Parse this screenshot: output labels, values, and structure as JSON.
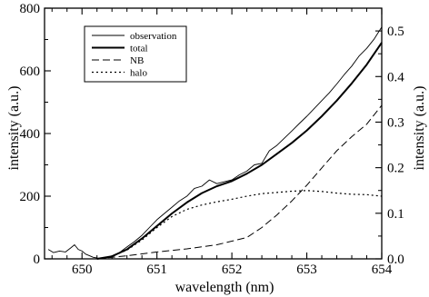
{
  "chart_data": {
    "type": "line",
    "xlabel": "wavelength (nm)",
    "ylabel": "intensity (a.u.)",
    "ylabel_right": "intensity (a.u.)",
    "xlim": [
      649.5,
      654.0
    ],
    "ylim": [
      0,
      800
    ],
    "ylim_right": [
      0,
      0.55
    ],
    "x_ticks": [
      650,
      651,
      652,
      653,
      654
    ],
    "x_tick_labels": [
      "650",
      "651",
      "652",
      "653",
      "654"
    ],
    "y_ticks": [
      0,
      200,
      400,
      600,
      800
    ],
    "y_tick_labels": [
      "0",
      "200",
      "400",
      "600",
      "800"
    ],
    "y_right_ticks": [
      0.0,
      0.1,
      0.2,
      0.3,
      0.4,
      0.5
    ],
    "y_right_tick_labels": [
      "0.0",
      "0.1",
      "0.2",
      "0.3",
      "0.4",
      "0.5"
    ],
    "legend": {
      "position": "top-left"
    },
    "series": [
      {
        "name": "observation",
        "style": "thin-solid",
        "x": [
          649.55,
          649.62,
          649.7,
          649.78,
          649.85,
          649.9,
          649.95,
          650.0,
          650.05,
          650.1,
          650.15,
          650.2,
          650.25,
          650.3,
          650.4,
          650.5,
          650.6,
          650.7,
          650.8,
          650.9,
          651.0,
          651.1,
          651.2,
          651.3,
          651.4,
          651.5,
          651.6,
          651.7,
          651.8,
          651.9,
          652.0,
          652.1,
          652.2,
          652.3,
          652.4,
          652.5,
          652.6,
          652.7,
          652.8,
          652.9,
          653.0,
          653.1,
          653.2,
          653.3,
          653.4,
          653.5,
          653.6,
          653.7,
          653.8,
          653.9,
          654.0
        ],
        "y": [
          30,
          20,
          25,
          22,
          35,
          45,
          30,
          25,
          15,
          10,
          5,
          3,
          0,
          3,
          8,
          20,
          38,
          55,
          75,
          100,
          125,
          145,
          165,
          185,
          200,
          225,
          232,
          252,
          240,
          246,
          252,
          268,
          280,
          300,
          305,
          345,
          362,
          385,
          408,
          432,
          455,
          480,
          505,
          530,
          558,
          588,
          615,
          648,
          672,
          702,
          740
        ]
      },
      {
        "name": "total",
        "style": "thick-solid",
        "x": [
          650.2,
          650.4,
          650.6,
          650.8,
          651.0,
          651.2,
          651.4,
          651.6,
          651.8,
          652.0,
          652.2,
          652.4,
          652.6,
          652.8,
          653.0,
          653.2,
          653.4,
          653.6,
          653.8,
          654.0
        ],
        "y": [
          0,
          8,
          30,
          65,
          105,
          145,
          180,
          210,
          232,
          248,
          272,
          300,
          335,
          370,
          410,
          455,
          505,
          560,
          620,
          690
        ]
      },
      {
        "name": "NB",
        "style": "dashed",
        "x": [
          650.2,
          650.6,
          651.0,
          651.4,
          651.8,
          652.2,
          652.4,
          652.6,
          652.8,
          653.0,
          653.2,
          653.4,
          653.6,
          653.8,
          654.0
        ],
        "y": [
          0,
          10,
          22,
          32,
          45,
          68,
          100,
          140,
          185,
          235,
          290,
          345,
          390,
          430,
          490
        ]
      },
      {
        "name": "halo",
        "style": "dotted",
        "x": [
          650.2,
          650.4,
          650.6,
          650.8,
          651.0,
          651.2,
          651.4,
          651.6,
          651.8,
          652.0,
          652.2,
          652.4,
          652.6,
          652.8,
          653.0,
          653.2,
          653.4,
          653.6,
          653.8,
          654.0
        ],
        "y": [
          0,
          8,
          28,
          60,
          100,
          135,
          158,
          172,
          182,
          190,
          200,
          208,
          212,
          216,
          218,
          215,
          210,
          206,
          205,
          200
        ]
      }
    ]
  }
}
